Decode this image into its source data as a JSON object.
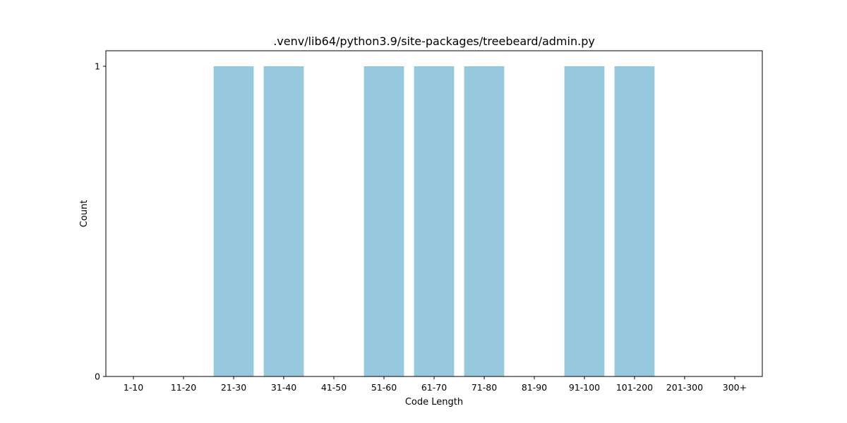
{
  "chart_data": {
    "type": "bar",
    "title": ".venv/lib64/python3.9/site-packages/treebeard/admin.py",
    "xlabel": "Code Length",
    "ylabel": "Count",
    "categories": [
      "1-10",
      "11-20",
      "21-30",
      "31-40",
      "41-50",
      "51-60",
      "61-70",
      "71-80",
      "81-90",
      "91-100",
      "101-200",
      "201-300",
      "300+"
    ],
    "values": [
      0,
      0,
      1,
      1,
      0,
      1,
      1,
      1,
      0,
      1,
      1,
      0,
      0
    ],
    "ylim": [
      0,
      1.05
    ],
    "yticks": [
      0,
      1
    ],
    "grid": false,
    "bar_color": "#96c9de"
  }
}
